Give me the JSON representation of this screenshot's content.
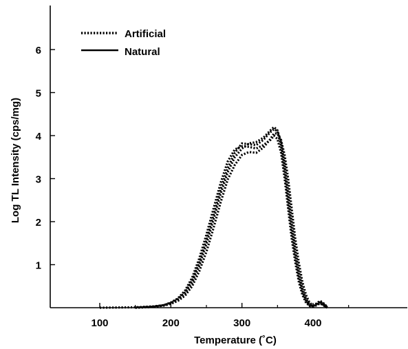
{
  "chart_data": {
    "type": "line",
    "xlabel": "Temperature (˚C)",
    "ylabel": "Log TL Intensity (cps/mg)",
    "xlim": [
      50,
      455
    ],
    "ylim": [
      0,
      7
    ],
    "x_ticks": [
      100,
      200,
      300,
      400
    ],
    "y_ticks": [
      1,
      2,
      3,
      4,
      5,
      6
    ],
    "legend": {
      "placement": "top-left",
      "entries": [
        {
          "label": "Artificial",
          "style": "dotted"
        },
        {
          "label": "Natural",
          "style": "solid"
        }
      ]
    },
    "series": [
      {
        "name": "Artificial",
        "style": "dotted",
        "points": [
          [
            100,
            0
          ],
          [
            150,
            0.01
          ],
          [
            175,
            0.03
          ],
          [
            190,
            0.06
          ],
          [
            200,
            0.12
          ],
          [
            210,
            0.22
          ],
          [
            220,
            0.4
          ],
          [
            230,
            0.7
          ],
          [
            240,
            1.15
          ],
          [
            250,
            1.7
          ],
          [
            260,
            2.3
          ],
          [
            270,
            2.9
          ],
          [
            280,
            3.4
          ],
          [
            290,
            3.68
          ],
          [
            300,
            3.75
          ],
          [
            310,
            3.74
          ],
          [
            320,
            3.7
          ],
          [
            330,
            3.78
          ],
          [
            340,
            3.9
          ],
          [
            345,
            4.0
          ],
          [
            350,
            3.92
          ],
          [
            355,
            3.6
          ],
          [
            360,
            3.0
          ],
          [
            365,
            2.3
          ],
          [
            370,
            1.6
          ],
          [
            375,
            1.05
          ],
          [
            380,
            0.6
          ],
          [
            385,
            0.3
          ],
          [
            390,
            0.12
          ],
          [
            395,
            0.04
          ],
          [
            400,
            0.02
          ],
          [
            405,
            0.06
          ],
          [
            410,
            0.1
          ],
          [
            415,
            0.05
          ],
          [
            420,
            0
          ]
        ]
      },
      {
        "name": "Artificial",
        "style": "dotted",
        "points": [
          [
            150,
            0
          ],
          [
            175,
            0.02
          ],
          [
            190,
            0.05
          ],
          [
            200,
            0.1
          ],
          [
            210,
            0.18
          ],
          [
            220,
            0.32
          ],
          [
            230,
            0.58
          ],
          [
            240,
            0.98
          ],
          [
            250,
            1.48
          ],
          [
            260,
            2.05
          ],
          [
            270,
            2.65
          ],
          [
            280,
            3.15
          ],
          [
            290,
            3.5
          ],
          [
            300,
            3.7
          ],
          [
            310,
            3.82
          ],
          [
            320,
            3.85
          ],
          [
            330,
            3.95
          ],
          [
            340,
            4.12
          ],
          [
            345,
            4.2
          ],
          [
            350,
            4.12
          ],
          [
            355,
            3.85
          ],
          [
            360,
            3.35
          ],
          [
            365,
            2.7
          ],
          [
            370,
            2.0
          ],
          [
            375,
            1.35
          ],
          [
            380,
            0.85
          ],
          [
            385,
            0.45
          ],
          [
            390,
            0.2
          ],
          [
            395,
            0.08
          ],
          [
            400,
            0.04
          ],
          [
            405,
            0.09
          ],
          [
            410,
            0.14
          ],
          [
            415,
            0.08
          ],
          [
            420,
            0.01
          ]
        ]
      },
      {
        "name": "Artificial",
        "style": "dotted",
        "points": [
          [
            150,
            0
          ],
          [
            175,
            0.02
          ],
          [
            190,
            0.05
          ],
          [
            200,
            0.09
          ],
          [
            210,
            0.16
          ],
          [
            220,
            0.28
          ],
          [
            230,
            0.5
          ],
          [
            240,
            0.85
          ],
          [
            250,
            1.3
          ],
          [
            260,
            1.85
          ],
          [
            270,
            2.45
          ],
          [
            280,
            2.98
          ],
          [
            290,
            3.32
          ],
          [
            300,
            3.55
          ],
          [
            310,
            3.62
          ],
          [
            320,
            3.6
          ],
          [
            330,
            3.72
          ],
          [
            340,
            3.92
          ],
          [
            345,
            4.05
          ],
          [
            350,
            4.05
          ],
          [
            355,
            3.9
          ],
          [
            360,
            3.55
          ],
          [
            365,
            3.0
          ],
          [
            370,
            2.3
          ],
          [
            375,
            1.6
          ],
          [
            380,
            1.05
          ],
          [
            385,
            0.6
          ],
          [
            390,
            0.3
          ],
          [
            395,
            0.12
          ],
          [
            400,
            0.05
          ],
          [
            405,
            0.1
          ],
          [
            410,
            0.16
          ],
          [
            415,
            0.1
          ],
          [
            420,
            0.02
          ]
        ]
      },
      {
        "name": "Artificial",
        "style": "dotted",
        "points": [
          [
            150,
            0
          ],
          [
            175,
            0.02
          ],
          [
            190,
            0.06
          ],
          [
            200,
            0.11
          ],
          [
            210,
            0.2
          ],
          [
            220,
            0.36
          ],
          [
            230,
            0.64
          ],
          [
            240,
            1.05
          ],
          [
            250,
            1.58
          ],
          [
            260,
            2.15
          ],
          [
            270,
            2.75
          ],
          [
            280,
            3.25
          ],
          [
            290,
            3.6
          ],
          [
            300,
            3.82
          ],
          [
            310,
            3.8
          ],
          [
            320,
            3.78
          ],
          [
            330,
            3.9
          ],
          [
            340,
            4.08
          ],
          [
            345,
            4.15
          ],
          [
            350,
            4.1
          ],
          [
            355,
            3.75
          ],
          [
            360,
            3.2
          ],
          [
            365,
            2.5
          ],
          [
            370,
            1.8
          ],
          [
            375,
            1.2
          ],
          [
            380,
            0.72
          ],
          [
            385,
            0.38
          ],
          [
            390,
            0.16
          ],
          [
            395,
            0.06
          ],
          [
            400,
            0.03
          ],
          [
            405,
            0.07
          ],
          [
            410,
            0.12
          ],
          [
            415,
            0.06
          ],
          [
            420,
            0
          ]
        ]
      }
    ]
  }
}
